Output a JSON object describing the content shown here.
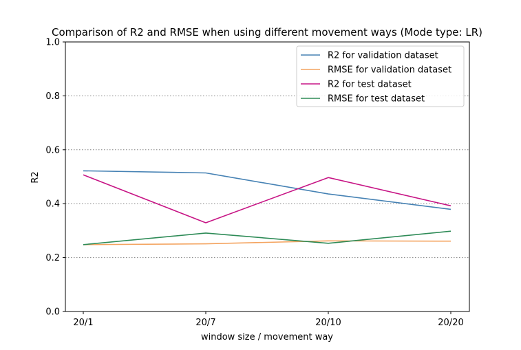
{
  "chart_data": {
    "type": "line",
    "title": "Comparison of R2 and RMSE when using different movement ways (Mode type: LR)",
    "xlabel": "window size / movement way",
    "ylabel": "R2",
    "categories": [
      "20/1",
      "20/7",
      "20/10",
      "20/20"
    ],
    "ylim": [
      0,
      1.0
    ],
    "yticks": [
      "0.0",
      "0.2",
      "0.4",
      "0.6",
      "0.8",
      "1.0"
    ],
    "grid": "horizontal dotted",
    "legend_position": "top-right",
    "series": [
      {
        "name": "R2 for validation dataset",
        "color": "#4682b4",
        "values": [
          0.522,
          0.514,
          0.436,
          0.379
        ]
      },
      {
        "name": "RMSE for validation dataset",
        "color": "#f4a460",
        "values": [
          0.248,
          0.251,
          0.262,
          0.261
        ]
      },
      {
        "name": "R2 for test dataset",
        "color": "#c71585",
        "values": [
          0.507,
          0.329,
          0.497,
          0.392
        ]
      },
      {
        "name": "RMSE for test dataset",
        "color": "#2e8b57",
        "values": [
          0.248,
          0.291,
          0.253,
          0.298
        ]
      }
    ]
  }
}
